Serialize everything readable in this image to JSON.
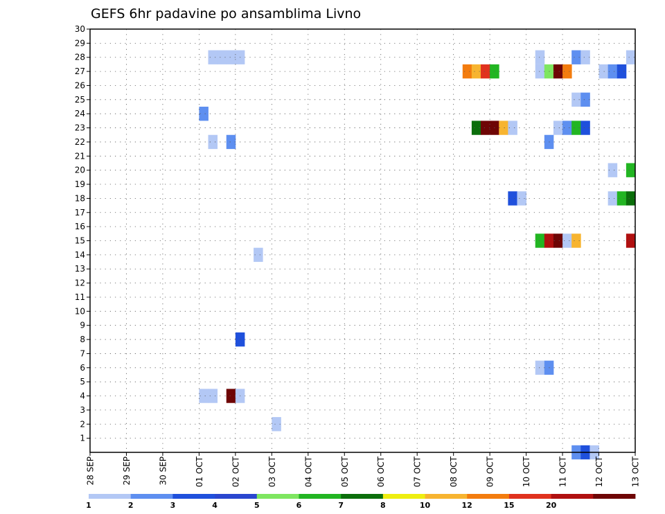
{
  "chart_data": {
    "type": "heatmap",
    "title": "GEFS 6hr padavine po ansamblima Livno",
    "xlabel": "",
    "ylabel": "",
    "x_tick_labels": [
      "28 SEP",
      "29 SEP",
      "30 SEP",
      "01 OCT",
      "02 OCT",
      "03 OCT",
      "04 OCT",
      "05 OCT",
      "06 OCT",
      "07 OCT",
      "08 OCT",
      "09 OCT",
      "10 OCT",
      "11 OCT",
      "12 OCT",
      "13 OCT"
    ],
    "xlim": [
      0,
      60
    ],
    "ylim": [
      0,
      30
    ],
    "y_tick_labels": [
      1,
      2,
      3,
      4,
      5,
      6,
      7,
      8,
      9,
      10,
      11,
      12,
      13,
      14,
      15,
      16,
      17,
      18,
      19,
      20,
      21,
      22,
      23,
      24,
      25,
      26,
      27,
      28,
      29,
      30
    ],
    "grid": true,
    "legend_placement": "bottom",
    "colorbar": {
      "colors": [
        "#b3c8f5",
        "#5e8ff0",
        "#1f50dc",
        "#2a46cf",
        "#7ee660",
        "#22b522",
        "#0b6e0b",
        "#eeee10",
        "#f7b430",
        "#f37c0e",
        "#e0321e",
        "#b01010",
        "#6e0505"
      ],
      "tick_labels": [
        "1",
        "2",
        "3",
        "4",
        "5",
        "6",
        "7",
        "8",
        "10",
        "12",
        "15",
        "20"
      ]
    },
    "cells": [
      {
        "member": 28,
        "t": 13,
        "level": 0
      },
      {
        "member": 28,
        "t": 14,
        "level": 0
      },
      {
        "member": 28,
        "t": 15,
        "level": 0
      },
      {
        "member": 28,
        "t": 16,
        "level": 0
      },
      {
        "member": 28,
        "t": 49,
        "level": 0
      },
      {
        "member": 28,
        "t": 53,
        "level": 1
      },
      {
        "member": 28,
        "t": 54,
        "level": 0
      },
      {
        "member": 28,
        "t": 59,
        "level": 0
      },
      {
        "member": 27,
        "t": 41,
        "level": 9
      },
      {
        "member": 27,
        "t": 42,
        "level": 8
      },
      {
        "member": 27,
        "t": 43,
        "level": 10
      },
      {
        "member": 27,
        "t": 44,
        "level": 5
      },
      {
        "member": 27,
        "t": 49,
        "level": 0
      },
      {
        "member": 27,
        "t": 50,
        "level": 4
      },
      {
        "member": 27,
        "t": 51,
        "level": 12
      },
      {
        "member": 27,
        "t": 52,
        "level": 9
      },
      {
        "member": 27,
        "t": 56,
        "level": 0
      },
      {
        "member": 27,
        "t": 57,
        "level": 1
      },
      {
        "member": 27,
        "t": 58,
        "level": 2
      },
      {
        "member": 25,
        "t": 53,
        "level": 0
      },
      {
        "member": 25,
        "t": 54,
        "level": 1
      },
      {
        "member": 24,
        "t": 12,
        "level": 1
      },
      {
        "member": 23,
        "t": 42,
        "level": 6
      },
      {
        "member": 23,
        "t": 43,
        "level": 12
      },
      {
        "member": 23,
        "t": 44,
        "level": 12
      },
      {
        "member": 23,
        "t": 45,
        "level": 8
      },
      {
        "member": 23,
        "t": 46,
        "level": 0
      },
      {
        "member": 23,
        "t": 51,
        "level": 0
      },
      {
        "member": 23,
        "t": 52,
        "level": 1
      },
      {
        "member": 23,
        "t": 53,
        "level": 5
      },
      {
        "member": 23,
        "t": 54,
        "level": 2
      },
      {
        "member": 22,
        "t": 13,
        "level": 0
      },
      {
        "member": 22,
        "t": 15,
        "level": 1
      },
      {
        "member": 22,
        "t": 50,
        "level": 1
      },
      {
        "member": 20,
        "t": 57,
        "level": 0
      },
      {
        "member": 20,
        "t": 59,
        "level": 5
      },
      {
        "member": 18,
        "t": 46,
        "level": 2
      },
      {
        "member": 18,
        "t": 47,
        "level": 0
      },
      {
        "member": 18,
        "t": 57,
        "level": 0
      },
      {
        "member": 18,
        "t": 58,
        "level": 5
      },
      {
        "member": 18,
        "t": 59,
        "level": 6
      },
      {
        "member": 15,
        "t": 49,
        "level": 5
      },
      {
        "member": 15,
        "t": 50,
        "level": 11
      },
      {
        "member": 15,
        "t": 51,
        "level": 12
      },
      {
        "member": 15,
        "t": 52,
        "level": 0
      },
      {
        "member": 15,
        "t": 53,
        "level": 8
      },
      {
        "member": 15,
        "t": 59,
        "level": 11
      },
      {
        "member": 14,
        "t": 18,
        "level": 0
      },
      {
        "member": 8,
        "t": 16,
        "level": 2
      },
      {
        "member": 6,
        "t": 49,
        "level": 0
      },
      {
        "member": 6,
        "t": 50,
        "level": 1
      },
      {
        "member": 4,
        "t": 12,
        "level": 0
      },
      {
        "member": 4,
        "t": 13,
        "level": 0
      },
      {
        "member": 4,
        "t": 15,
        "level": 12
      },
      {
        "member": 4,
        "t": 16,
        "level": 0
      },
      {
        "member": 2,
        "t": 20,
        "level": 0
      },
      {
        "member": 0,
        "t": 53,
        "level": 1
      },
      {
        "member": 0,
        "t": 54,
        "level": 2
      },
      {
        "member": 0,
        "t": 55,
        "level": 0
      }
    ]
  }
}
